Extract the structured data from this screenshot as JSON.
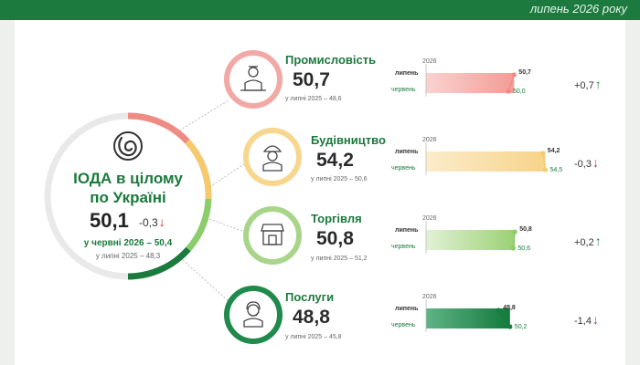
{
  "header": {
    "period": "липень 2026 року"
  },
  "overall": {
    "title_line1": "ІОДА в цілому",
    "title_line2": "по Україні",
    "value": "50,1",
    "change": "-0,3",
    "june": "у червні 2026 – 50,4",
    "july_2025": "у липні 2025 – 48,3"
  },
  "chart_data": {
    "type": "bar",
    "categories": [
      "Промисловість",
      "Будівництво",
      "Торгівля",
      "Послуги"
    ],
    "series": [
      {
        "name": "липень",
        "values": [
          50.7,
          54.2,
          50.8,
          48.8
        ]
      },
      {
        "name": "червень",
        "values": [
          50.0,
          54.5,
          50.6,
          50.2
        ]
      }
    ],
    "year_label": "2026",
    "labels": {
      "sectors": [
        {
          "name": "Промисловість",
          "value": "50,7",
          "prev": "у липні 2025 – 48,6",
          "change": "+0,7",
          "dir": "up",
          "jul": "50,7",
          "jun": "50,0",
          "color": "#f2a9a5",
          "icon": "industry-worker-icon"
        },
        {
          "name": "Будівництво",
          "value": "54,2",
          "prev": "у липні 2025 – 50,6",
          "change": "-0,3",
          "dir": "down",
          "jul": "54,2",
          "jun": "54,5",
          "color": "#f7d68e",
          "icon": "construction-worker-icon"
        },
        {
          "name": "Торгівля",
          "value": "50,8",
          "prev": "у липні 2025 – 51,2",
          "change": "+0,2",
          "dir": "up",
          "jul": "50,8",
          "jun": "50,6",
          "color": "#a8d58a",
          "icon": "shop-icon"
        },
        {
          "name": "Послуги",
          "value": "48,8",
          "prev": "у липні 2025 – 45,8",
          "change": "-1,4",
          "dir": "down",
          "jul": "48,8",
          "jun": "50,2",
          "color": "#1f8a4c",
          "icon": "operator-headset-icon"
        }
      ]
    },
    "bar_colors": [
      "#f6b3ae",
      "#f9dfa3",
      "#b9de9b",
      "#2b8f56"
    ],
    "ring_colors": [
      "#f08b84",
      "#f5c96c",
      "#8ccc6a",
      "#1b7a3d"
    ]
  }
}
